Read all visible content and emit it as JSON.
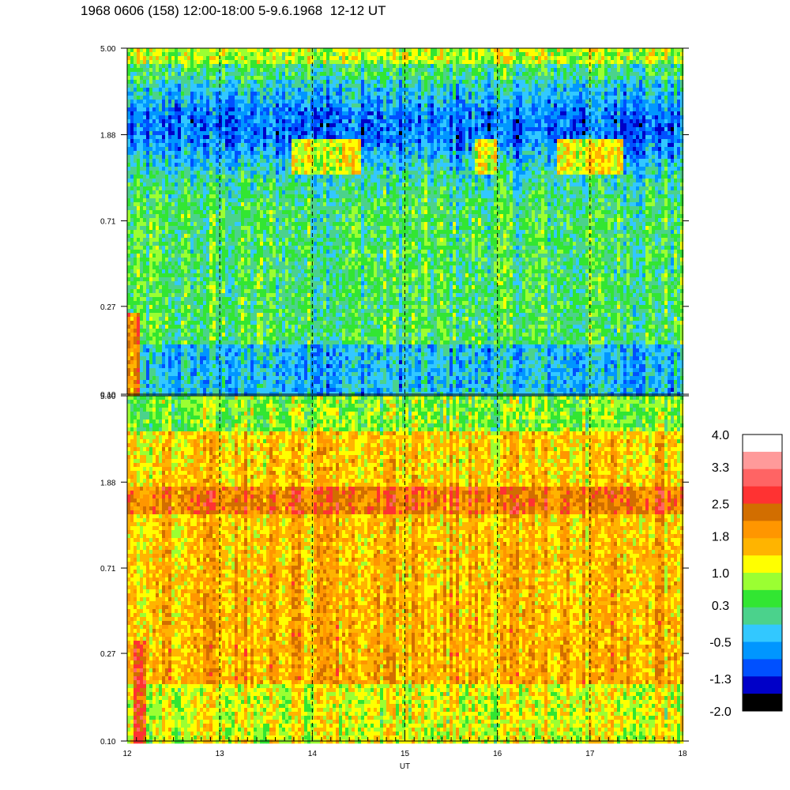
{
  "title": "1968 0606 (158) 12:00-18:00 5-9.6.1968  12-12 UT",
  "chart_data": {
    "type": "heatmap",
    "xlabel": "UT",
    "x_range": [
      12,
      18
    ],
    "x_ticks": [
      "12",
      "13",
      "14",
      "15",
      "16",
      "17",
      "18"
    ],
    "x_dashed_lines": [
      13,
      14,
      15,
      16,
      17
    ],
    "y_scale": "log",
    "y_range": [
      0.1,
      5.0
    ],
    "panels": [
      {
        "id": "top",
        "y_ticks": [
          "5.00",
          "1.88",
          "0.71",
          "0.27",
          "0.10"
        ],
        "y_tick_values": [
          5.0,
          1.88,
          0.71,
          0.27,
          0.1
        ],
        "dominant_levels": "-1.3 to 1.0"
      },
      {
        "id": "bottom",
        "y_ticks": [
          "5.00",
          "1.88",
          "0.71",
          "0.27",
          "0.10"
        ],
        "y_tick_values": [
          5.0,
          1.88,
          0.71,
          0.27,
          0.1
        ],
        "dominant_levels": "0.3 to 2.5",
        "band_near_y": 1.6
      }
    ],
    "colorbar": {
      "labels": [
        "4.0",
        "3.3",
        "2.5",
        "1.8",
        "1.0",
        "0.3",
        "-0.5",
        "-1.3",
        "-2.0"
      ],
      "label_values": [
        4.0,
        3.3,
        2.5,
        1.8,
        1.0,
        0.3,
        -0.5,
        -1.3,
        -2.0
      ],
      "colors_top_to_bottom": [
        "#ffffff",
        "#ff9a9a",
        "#ff6464",
        "#ff3232",
        "#d26e00",
        "#ff9600",
        "#ffb400",
        "#ffff00",
        "#9bff32",
        "#32e632",
        "#4bd28c",
        "#32c8ff",
        "#0096ff",
        "#0050ff",
        "#0000c8",
        "#000000"
      ]
    }
  }
}
